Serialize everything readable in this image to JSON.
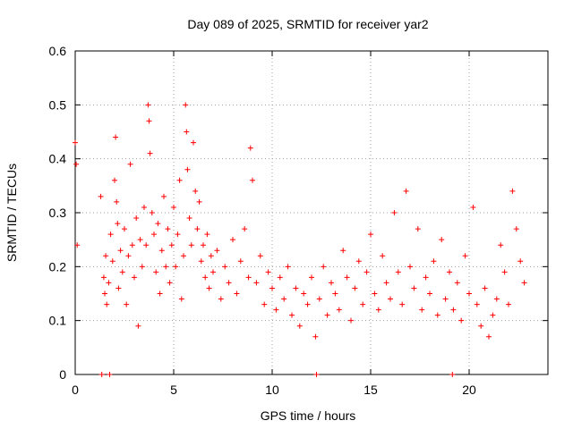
{
  "chart_data": {
    "type": "scatter",
    "title": "Day 089 of 2025, SRMTID for receiver yar2",
    "xlabel": "GPS time / hours",
    "ylabel": "SRMTID / TECUs",
    "xlim": [
      0,
      24
    ],
    "ylim": [
      0,
      0.6
    ],
    "xticks": [
      0,
      5,
      10,
      15,
      20
    ],
    "xtick_labels": [
      "0",
      "5",
      "10",
      "15",
      "20"
    ],
    "yticks": [
      0,
      0.1,
      0.2,
      0.3,
      0.4,
      0.5,
      0.6
    ],
    "ytick_labels": [
      "0",
      "0.1",
      "0.2",
      "0.3",
      "0.4",
      "0.5",
      "0.6"
    ],
    "grid": true,
    "marker": "+",
    "series": [
      {
        "name": "SRMTID",
        "color": "#ff0000",
        "x": [
          0.0,
          0.05,
          0.1,
          1.3,
          1.45,
          1.5,
          1.55,
          1.6,
          1.7,
          1.8,
          1.9,
          2.0,
          2.05,
          2.1,
          2.15,
          2.2,
          2.3,
          2.4,
          2.5,
          2.6,
          2.7,
          2.8,
          2.9,
          3.0,
          3.1,
          3.2,
          3.3,
          3.4,
          3.5,
          3.6,
          3.7,
          3.75,
          3.8,
          3.9,
          4.0,
          4.1,
          4.2,
          4.3,
          4.4,
          4.5,
          4.6,
          4.7,
          4.8,
          4.9,
          5.0,
          5.1,
          5.2,
          5.3,
          5.4,
          5.5,
          5.6,
          5.65,
          5.7,
          5.8,
          5.9,
          6.0,
          6.1,
          6.2,
          6.3,
          6.4,
          6.5,
          6.6,
          6.7,
          6.8,
          6.9,
          7.0,
          7.2,
          7.4,
          7.6,
          7.8,
          8.0,
          8.2,
          8.4,
          8.6,
          8.8,
          8.9,
          9.0,
          9.2,
          9.4,
          9.6,
          9.8,
          10.0,
          10.2,
          10.4,
          10.6,
          10.8,
          11.0,
          11.2,
          11.4,
          11.6,
          11.8,
          12.0,
          12.2,
          12.4,
          12.6,
          12.8,
          13.0,
          13.2,
          13.4,
          13.6,
          13.8,
          14.0,
          14.2,
          14.4,
          14.6,
          14.8,
          15.0,
          15.2,
          15.4,
          15.6,
          15.8,
          16.0,
          16.2,
          16.4,
          16.6,
          16.8,
          17.0,
          17.2,
          17.4,
          17.6,
          17.8,
          18.0,
          18.2,
          18.4,
          18.6,
          18.8,
          19.0,
          19.2,
          19.4,
          19.6,
          19.8,
          20.0,
          20.2,
          20.4,
          20.6,
          20.8,
          21.0,
          21.2,
          21.4,
          21.6,
          21.8,
          22.0,
          22.2,
          22.4,
          22.6,
          22.8,
          1.35,
          1.75,
          12.25,
          19.15
        ],
        "y": [
          0.43,
          0.39,
          0.24,
          0.33,
          0.18,
          0.15,
          0.22,
          0.13,
          0.17,
          0.26,
          0.21,
          0.36,
          0.44,
          0.32,
          0.28,
          0.16,
          0.23,
          0.19,
          0.27,
          0.13,
          0.22,
          0.39,
          0.24,
          0.18,
          0.29,
          0.09,
          0.25,
          0.2,
          0.31,
          0.24,
          0.5,
          0.47,
          0.41,
          0.3,
          0.26,
          0.19,
          0.28,
          0.15,
          0.23,
          0.33,
          0.2,
          0.27,
          0.17,
          0.24,
          0.31,
          0.2,
          0.26,
          0.36,
          0.14,
          0.22,
          0.5,
          0.45,
          0.38,
          0.29,
          0.24,
          0.43,
          0.34,
          0.27,
          0.32,
          0.21,
          0.24,
          0.18,
          0.26,
          0.16,
          0.22,
          0.19,
          0.23,
          0.14,
          0.2,
          0.17,
          0.25,
          0.15,
          0.21,
          0.27,
          0.18,
          0.42,
          0.36,
          0.17,
          0.22,
          0.13,
          0.19,
          0.16,
          0.12,
          0.18,
          0.14,
          0.2,
          0.11,
          0.16,
          0.09,
          0.15,
          0.13,
          0.18,
          0.07,
          0.14,
          0.2,
          0.11,
          0.17,
          0.15,
          0.12,
          0.23,
          0.18,
          0.1,
          0.16,
          0.21,
          0.13,
          0.19,
          0.26,
          0.15,
          0.12,
          0.22,
          0.17,
          0.14,
          0.3,
          0.19,
          0.13,
          0.34,
          0.2,
          0.16,
          0.27,
          0.12,
          0.18,
          0.15,
          0.21,
          0.11,
          0.25,
          0.14,
          0.19,
          0.12,
          0.17,
          0.1,
          0.22,
          0.15,
          0.31,
          0.13,
          0.09,
          0.16,
          0.07,
          0.11,
          0.14,
          0.24,
          0.19,
          0.13,
          0.34,
          0.27,
          0.21,
          0.17,
          0.0,
          0.0,
          0.0,
          0.0
        ]
      }
    ]
  }
}
